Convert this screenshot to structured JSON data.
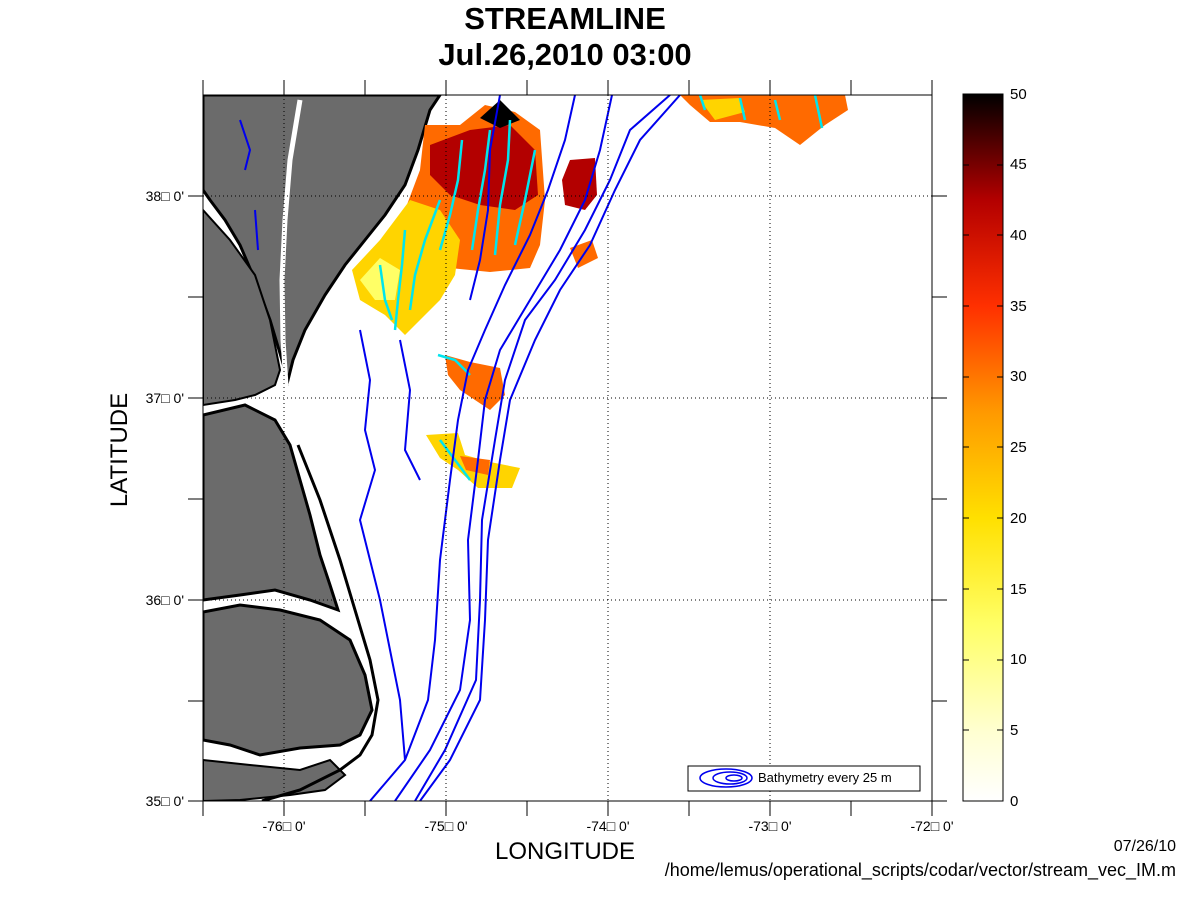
{
  "plot": {
    "title": "STREAMLINE",
    "subtitle": "Jul.26,2010 03:00",
    "xlabel": "LONGITUDE",
    "ylabel": "LATITUDE",
    "x_ticks": [
      "-76□ 0'",
      "-75□ 0'",
      "-74□ 0'",
      "-73□ 0'",
      "-72□ 0'"
    ],
    "y_ticks": [
      "38□ 0'",
      "37□ 0'",
      "36□ 0'",
      "35□ 0'"
    ],
    "legend_label": "Bathymetry every 25 m",
    "colorbar_ticks": [
      "50",
      "45",
      "40",
      "35",
      "30",
      "25",
      "20",
      "15",
      "10",
      "5",
      "0"
    ],
    "colormap": [
      "#ffffff",
      "#ffffa0",
      "#ffff33",
      "#ffd400",
      "#ff8c00",
      "#ff3300",
      "#b30000",
      "#000000"
    ]
  },
  "map_extent": {
    "lon": [
      -76.5,
      -72.0
    ],
    "lat": [
      35.0,
      38.5
    ]
  },
  "footer": {
    "date": "07/26/10",
    "script_path": "/home/lemus/operational_scripts/codar/vector/stream_vec_IM.m"
  }
}
